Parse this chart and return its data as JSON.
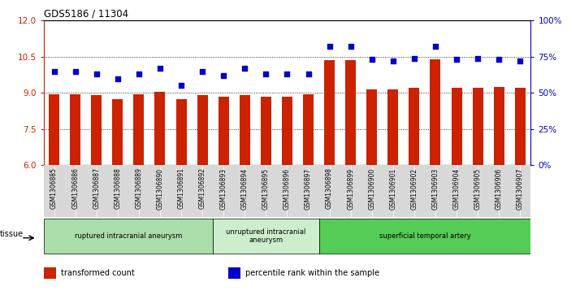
{
  "title": "GDS5186 / 11304",
  "samples": [
    "GSM1306885",
    "GSM1306886",
    "GSM1306887",
    "GSM1306888",
    "GSM1306889",
    "GSM1306890",
    "GSM1306891",
    "GSM1306892",
    "GSM1306893",
    "GSM1306894",
    "GSM1306895",
    "GSM1306896",
    "GSM1306897",
    "GSM1306898",
    "GSM1306899",
    "GSM1306900",
    "GSM1306901",
    "GSM1306902",
    "GSM1306903",
    "GSM1306904",
    "GSM1306905",
    "GSM1306906",
    "GSM1306907"
  ],
  "transformed_count": [
    8.95,
    8.95,
    8.9,
    8.75,
    8.95,
    9.05,
    8.75,
    8.9,
    8.85,
    8.9,
    8.85,
    8.85,
    8.95,
    10.35,
    10.35,
    9.15,
    9.15,
    9.2,
    10.4,
    9.2,
    9.2,
    9.25,
    9.2
  ],
  "percentile_rank": [
    65,
    65,
    63,
    60,
    63,
    67,
    55,
    65,
    62,
    67,
    63,
    63,
    63,
    82,
    82,
    73,
    72,
    74,
    82,
    73,
    74,
    73,
    72
  ],
  "bar_color": "#cc2200",
  "dot_color": "#0000cc",
  "ylim_left": [
    6,
    12
  ],
  "ylim_right": [
    0,
    100
  ],
  "yticks_left": [
    6,
    7.5,
    9,
    10.5,
    12
  ],
  "yticks_right": [
    0,
    25,
    50,
    75,
    100
  ],
  "grid_lines": [
    7.5,
    9.0,
    10.5
  ],
  "groups": [
    {
      "label": "ruptured intracranial aneurysm",
      "start": 0,
      "end": 8,
      "color": "#aaddaa"
    },
    {
      "label": "unruptured intracranial\naneurysm",
      "start": 8,
      "end": 13,
      "color": "#cceecc"
    },
    {
      "label": "superficial temporal artery",
      "start": 13,
      "end": 23,
      "color": "#55cc55"
    }
  ],
  "tissue_label": "tissue",
  "legend_items": [
    {
      "label": "transformed count",
      "color": "#cc2200"
    },
    {
      "label": "percentile rank within the sample",
      "color": "#0000cc"
    }
  ],
  "plot_bg": "#ffffff",
  "tick_bg": "#d8d8d8"
}
